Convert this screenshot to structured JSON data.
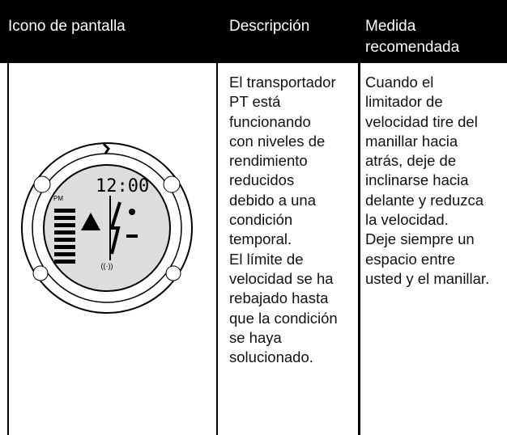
{
  "table": {
    "header": [
      "Icono de pantalla",
      "Descripción",
      "Medida recomendada"
    ],
    "rows": [
      [
        {
          "icon": {
            "time": "12:00",
            "period": "PM"
          }
        },
        [
          "El transportador",
          "PT está",
          "funcionando",
          "con niveles de",
          "rendimiento",
          "reducidos",
          "debido a una",
          "condición",
          "temporal.",
          "El límite de",
          "velocidad se ha",
          "rebajado hasta",
          "que la condición",
          "se haya",
          "solucionado."
        ],
        [
          "Cuando el",
          "limitador de",
          "velocidad tire del",
          "manillar hacia",
          "atrás, deje de",
          "inclinarse hacia",
          "delante y reduzca",
          "la velocidad.",
          "Deje siempre un",
          "espacio entre",
          "usted y el manillar."
        ]
      ]
    ]
  }
}
